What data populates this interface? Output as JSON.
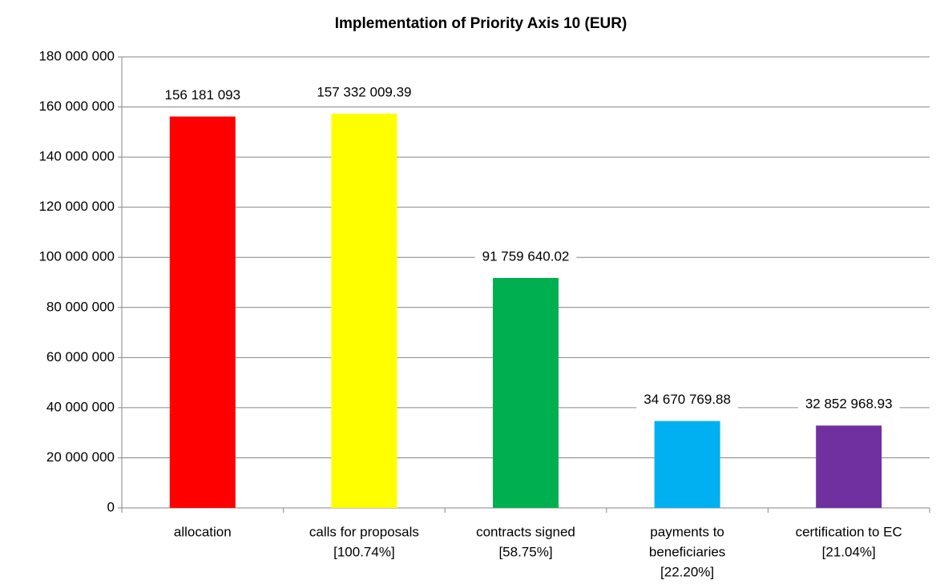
{
  "chart_data": {
    "type": "bar",
    "title": "Implementation of Priority Axis 10 (EUR)",
    "categories": [
      [
        "allocation"
      ],
      [
        "calls for proposals",
        "[100.74%]"
      ],
      [
        "contracts signed",
        "[58.75%]"
      ],
      [
        "payments to",
        "beneficiaries",
        "[22.20%]"
      ],
      [
        "certification to EC",
        "[21.04%]"
      ]
    ],
    "values": [
      156181093,
      157332009.39,
      91759640.02,
      34670769.88,
      32852968.93
    ],
    "value_labels": [
      "156 181 093",
      "157 332 009.39",
      "91 759 640.02",
      "34 670 769.88",
      "32 852 968.93"
    ],
    "colors": [
      "#ff0000",
      "#ffff00",
      "#00b050",
      "#00b0f0",
      "#7030a0"
    ],
    "ylim": [
      0,
      180000000
    ],
    "yticks": [
      0,
      {
        "value": 20000000,
        "label": "20 000 000"
      },
      {
        "value": 40000000,
        "label": "40 000 000"
      },
      {
        "value": 60000000,
        "label": "60 000 000"
      },
      {
        "value": 80000000,
        "label": "80 000 000"
      },
      {
        "value": 100000000,
        "label": "100 000 000"
      },
      {
        "value": 120000000,
        "label": "120 000 000"
      },
      {
        "value": 140000000,
        "label": "140 000 000"
      },
      {
        "value": 160000000,
        "label": "160 000 000"
      },
      {
        "value": 180000000,
        "label": "180 000 000"
      }
    ],
    "grid": true
  }
}
